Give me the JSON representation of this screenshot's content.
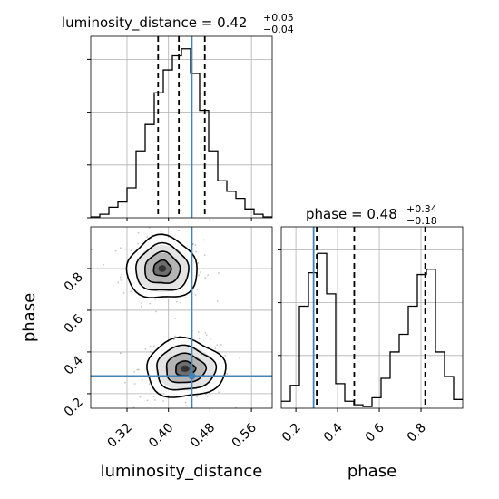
{
  "chart_data": {
    "type": "corner",
    "parameters": [
      "luminosity_distance",
      "phase"
    ],
    "truth": {
      "luminosity_distance": 0.445,
      "phase": 0.285
    },
    "truth_color": "#4682b4",
    "hist_color": "#000000",
    "panels": [
      {
        "id": "lum",
        "kind": "hist1d",
        "title": {
          "name": "luminosity_distance",
          "value": "0.42",
          "plus": "+0.05",
          "minus": "−0.04"
        },
        "xlim": [
          0.25,
          0.6
        ],
        "ymax": 1.0,
        "x": [
          0.255,
          0.272,
          0.289,
          0.306,
          0.323,
          0.339,
          0.356,
          0.373,
          0.39,
          0.406,
          0.423,
          0.44,
          0.457,
          0.474,
          0.491,
          0.508,
          0.524,
          0.541,
          0.558,
          0.575
        ],
        "values": [
          0.005,
          0.02,
          0.06,
          0.09,
          0.17,
          0.38,
          0.53,
          0.71,
          0.84,
          0.92,
          0.96,
          0.82,
          0.61,
          0.38,
          0.21,
          0.15,
          0.11,
          0.05,
          0.02,
          0.005
        ],
        "quantiles": [
          0.38,
          0.42,
          0.47
        ],
        "yticks": [
          0.0,
          0.3,
          0.6,
          0.9
        ]
      },
      {
        "id": "phase",
        "kind": "hist1d",
        "title": {
          "name": "phase",
          "value": "0.48",
          "plus": "+0.34",
          "minus": "−0.18"
        },
        "xlim": [
          0.13,
          1.0
        ],
        "ymax": 1.0,
        "x": [
          0.137,
          0.181,
          0.224,
          0.268,
          0.311,
          0.355,
          0.398,
          0.442,
          0.485,
          0.529,
          0.572,
          0.616,
          0.659,
          0.703,
          0.746,
          0.79,
          0.833,
          0.877,
          0.92,
          0.964
        ],
        "values": [
          0.04,
          0.13,
          0.58,
          0.77,
          0.88,
          0.65,
          0.14,
          0.04,
          0.02,
          0.01,
          0.06,
          0.17,
          0.32,
          0.42,
          0.58,
          0.76,
          0.79,
          0.32,
          0.18,
          0.05
        ],
        "quantiles": [
          0.3,
          0.48,
          0.82
        ],
        "xticks": [
          0.2,
          0.4,
          0.6,
          0.8
        ],
        "xticklabels": [
          "0.2",
          "0.4",
          "0.6",
          "0.8"
        ],
        "xlabel": "phase"
      },
      {
        "id": "joint",
        "kind": "hist2d",
        "xlim": [
          0.25,
          0.6
        ],
        "ylim": [
          0.13,
          1.0
        ],
        "xticks": [
          0.32,
          0.4,
          0.48,
          0.56
        ],
        "xticklabels": [
          "0.32",
          "0.40",
          "0.48",
          "0.56"
        ],
        "yticks": [
          0.2,
          0.4,
          0.6,
          0.8
        ],
        "yticklabels": [
          "0.2",
          "0.4",
          "0.6",
          "0.8"
        ],
        "xlabel": "luminosity_distance",
        "ylabel": "phase",
        "modes": [
          {
            "x": 0.388,
            "y": 0.8,
            "sx": 0.034,
            "sy": 0.075,
            "weight": 0.5
          },
          {
            "x": 0.432,
            "y": 0.32,
            "sx": 0.038,
            "sy": 0.07,
            "weight": 0.5
          }
        ]
      }
    ]
  }
}
